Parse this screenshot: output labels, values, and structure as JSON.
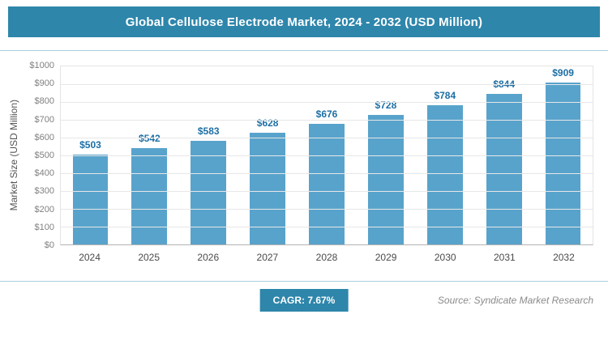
{
  "header": {
    "title": "Global Cellulose Electrode Market, 2024 - 2032 (USD Million)"
  },
  "chart_data": {
    "type": "bar",
    "title": "Global Cellulose Electrode Market, 2024 - 2032 (USD Million)",
    "categories": [
      "2024",
      "2025",
      "2026",
      "2027",
      "2028",
      "2029",
      "2030",
      "2031",
      "2032"
    ],
    "values": [
      503,
      542,
      583,
      628,
      676,
      728,
      784,
      844,
      909
    ],
    "labels": [
      "$503",
      "$542",
      "$583",
      "$628",
      "$676",
      "$728",
      "$784",
      "$844",
      "$909"
    ],
    "xlabel": "",
    "ylabel": "Market Size (USD Million)",
    "ylim": [
      0,
      1000
    ],
    "ytick_step": 100,
    "grid": true,
    "legend": "none",
    "bar_color": "#58a3cc",
    "value_label_color": "#1d6fa5"
  },
  "footer": {
    "cagr_label": "CAGR: 7.67%",
    "source": "Source: Syndicate Market Research"
  },
  "colors": {
    "accent": "#2e86ab",
    "bar": "#58a3cc",
    "bar_label": "#1d6fa5",
    "divider": "#a9cfdf"
  }
}
